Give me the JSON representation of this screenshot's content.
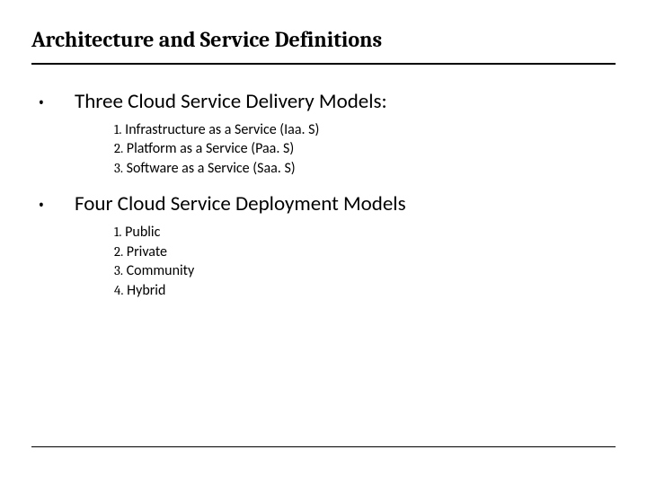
{
  "slide": {
    "title": "Architecture and Service Definitions",
    "bullets": [
      {
        "heading": "Three Cloud Service Delivery Models:",
        "items": [
          {
            "num": "1.",
            "text": "Infrastructure as a Service (Iaa. S)"
          },
          {
            "num": "2.",
            "text": "Platform as a Service (Paa. S)"
          },
          {
            "num": "3.",
            "text": "Software as a Service (Saa. S)"
          }
        ]
      },
      {
        "heading": "Four Cloud Service Deployment Models",
        "items": [
          {
            "num": "1.",
            "text": "Public"
          },
          {
            "num": "2.",
            "text": "Private"
          },
          {
            "num": "3.",
            "text": "Community"
          },
          {
            "num": "4.",
            "text": "Hybrid"
          }
        ]
      }
    ]
  },
  "style": {
    "background_color": "#ffffff",
    "text_color": "#000000",
    "title_fontsize": 24,
    "heading_fontsize": 23,
    "subitem_fontsize": 16,
    "rule_color": "#000000"
  }
}
